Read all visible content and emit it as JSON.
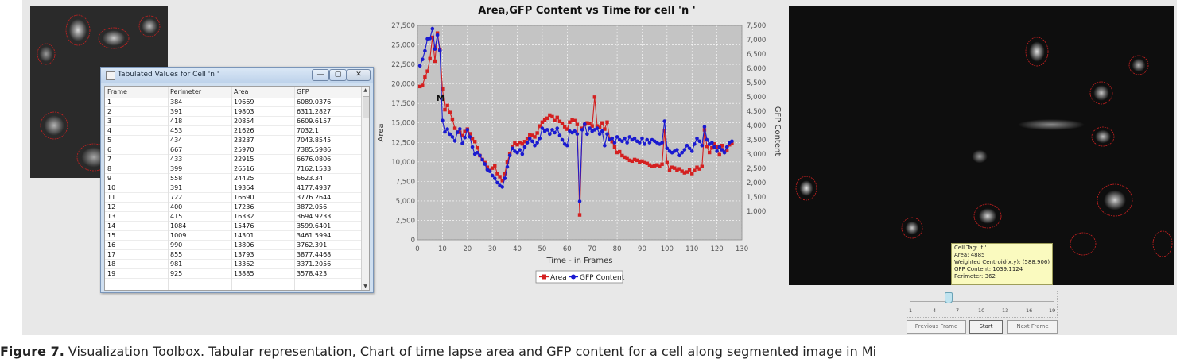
{
  "table_window": {
    "title": "Tabulated Values for Cell 'n '",
    "controls": {
      "minimize": "—",
      "maximize": "▢",
      "close": "✕"
    },
    "columns": [
      "Frame",
      "Perimeter",
      "Area",
      "GFP"
    ],
    "rows": [
      [
        "1",
        "384",
        "19669",
        "6089.0376"
      ],
      [
        "2",
        "391",
        "19803",
        "6311.2827"
      ],
      [
        "3",
        "418",
        "20854",
        "6609.6157"
      ],
      [
        "4",
        "453",
        "21626",
        "7032.1"
      ],
      [
        "5",
        "434",
        "23237",
        "7043.8545"
      ],
      [
        "6",
        "667",
        "25970",
        "7385.5986"
      ],
      [
        "7",
        "433",
        "22915",
        "6676.0806"
      ],
      [
        "8",
        "399",
        "26516",
        "7162.1533"
      ],
      [
        "9",
        "558",
        "24425",
        "6623.34"
      ],
      [
        "10",
        "391",
        "19364",
        "4177.4937"
      ],
      [
        "11",
        "722",
        "16690",
        "3776.2644"
      ],
      [
        "12",
        "400",
        "17236",
        "3872.056"
      ],
      [
        "13",
        "415",
        "16332",
        "3694.9233"
      ],
      [
        "14",
        "1084",
        "15476",
        "3599.6401"
      ],
      [
        "15",
        "1009",
        "14301",
        "3461.5994"
      ],
      [
        "16",
        "990",
        "13806",
        "3762.391"
      ],
      [
        "17",
        "855",
        "13793",
        "3877.4468"
      ],
      [
        "18",
        "981",
        "13362",
        "3371.2056"
      ],
      [
        "19",
        "925",
        "13885",
        "3578.423"
      ]
    ]
  },
  "chart_data": {
    "type": "line",
    "title": "Area,GFP Content vs Time for cell 'n '",
    "xlabel": "Time - in Frames",
    "ylabel": "Area",
    "y2label": "GFP Content",
    "xlim": [
      0,
      130
    ],
    "ylim": [
      0,
      27500
    ],
    "y2lim": [
      0,
      7500
    ],
    "x_ticks": [
      "0",
      "10",
      "20",
      "30",
      "40",
      "50",
      "60",
      "70",
      "80",
      "90",
      "100",
      "110",
      "120",
      "130"
    ],
    "y_ticks": [
      "0",
      "2,500",
      "5,000",
      "7,500",
      "10,000",
      "12,500",
      "15,000",
      "17,500",
      "20,000",
      "22,500",
      "25,000",
      "27,500"
    ],
    "y2_ticks": [
      "1,000",
      "1,500",
      "2,000",
      "2,500",
      "3,000",
      "3,500",
      "4,000",
      "4,500",
      "5,000",
      "5,500",
      "6,000",
      "6,500",
      "7,000",
      "7,500"
    ],
    "annotation": "M",
    "legend": [
      "Area",
      "GFP Content"
    ],
    "legend_position": "bottom",
    "grid": true,
    "series": [
      {
        "name": "Area",
        "axis": "left",
        "color": "#d42020",
        "x": [
          1,
          2,
          3,
          4,
          5,
          6,
          7,
          8,
          9,
          10,
          11,
          12,
          13,
          14,
          15,
          16,
          17,
          18,
          19,
          20,
          21,
          22,
          23,
          24,
          25,
          26,
          27,
          28,
          29,
          30,
          31,
          32,
          33,
          34,
          35,
          36,
          37,
          38,
          39,
          40,
          41,
          42,
          43,
          44,
          45,
          46,
          47,
          48,
          49,
          50,
          51,
          52,
          53,
          54,
          55,
          56,
          57,
          58,
          59,
          60,
          61,
          62,
          63,
          64,
          65,
          66,
          67,
          68,
          69,
          70,
          71,
          72,
          73,
          74,
          75,
          76,
          77,
          78,
          79,
          80,
          81,
          82,
          83,
          84,
          85,
          86,
          87,
          88,
          89,
          90,
          91,
          92,
          93,
          94,
          95,
          96,
          97,
          98,
          99,
          100,
          101,
          102,
          103,
          104,
          105,
          106,
          107,
          108,
          109,
          110,
          111,
          112,
          113,
          114,
          115,
          116,
          117,
          118,
          119,
          120,
          121,
          122,
          123,
          124,
          125,
          126
        ],
        "y": [
          19669,
          19803,
          20854,
          21626,
          23237,
          25970,
          22915,
          26516,
          24425,
          19364,
          16690,
          17236,
          16332,
          15476,
          14301,
          13806,
          13793,
          13362,
          13885,
          14200,
          13600,
          13000,
          12600,
          11800,
          10800,
          10300,
          9900,
          9300,
          8900,
          9200,
          9500,
          8500,
          8100,
          7600,
          8500,
          10000,
          11000,
          12000,
          12400,
          12200,
          12500,
          12300,
          12600,
          13000,
          13500,
          13400,
          13200,
          13700,
          14600,
          15100,
          15400,
          15600,
          16000,
          15800,
          15300,
          15700,
          15200,
          14900,
          14500,
          14200,
          15100,
          15400,
          15300,
          14800,
          3200,
          14300,
          14800,
          15000,
          14900,
          14600,
          18300,
          14600,
          14400,
          15000,
          14200,
          15100,
          12900,
          12600,
          11900,
          11200,
          11300,
          10800,
          10600,
          10400,
          10200,
          10100,
          10300,
          10200,
          10000,
          10100,
          9900,
          9800,
          9600,
          9400,
          9500,
          9600,
          9400,
          9700,
          14000,
          9900,
          8900,
          9300,
          9200,
          8900,
          9100,
          8800,
          8600,
          8700,
          9000,
          8500,
          8900,
          9300,
          9100,
          9400,
          14100,
          12000,
          11200,
          11800,
          12300,
          11900,
          10900,
          12100,
          11300,
          11500,
          12200,
          12400
        ]
      },
      {
        "name": "GFP Content",
        "axis": "right",
        "color": "#1a1ad0",
        "x": [
          1,
          2,
          3,
          4,
          5,
          6,
          7,
          8,
          9,
          10,
          11,
          12,
          13,
          14,
          15,
          16,
          17,
          18,
          19,
          20,
          21,
          22,
          23,
          24,
          25,
          26,
          27,
          28,
          29,
          30,
          31,
          32,
          33,
          34,
          35,
          36,
          37,
          38,
          39,
          40,
          41,
          42,
          43,
          44,
          45,
          46,
          47,
          48,
          49,
          50,
          51,
          52,
          53,
          54,
          55,
          56,
          57,
          58,
          59,
          60,
          61,
          62,
          63,
          64,
          65,
          66,
          67,
          68,
          69,
          70,
          71,
          72,
          73,
          74,
          75,
          76,
          77,
          78,
          79,
          80,
          81,
          82,
          83,
          84,
          85,
          86,
          87,
          88,
          89,
          90,
          91,
          92,
          93,
          94,
          95,
          96,
          97,
          98,
          99,
          100,
          101,
          102,
          103,
          104,
          105,
          106,
          107,
          108,
          109,
          110,
          111,
          112,
          113,
          114,
          115,
          116,
          117,
          118,
          119,
          120,
          121,
          122,
          123,
          124,
          125,
          126
        ],
        "y": [
          6089,
          6311,
          6610,
          7032,
          7044,
          7386,
          6676,
          7162,
          6623,
          4177,
          3776,
          3872,
          3695,
          3600,
          3462,
          3762,
          3877,
          3371,
          3578,
          3850,
          3600,
          3250,
          3000,
          3050,
          2950,
          2800,
          2650,
          2450,
          2400,
          2250,
          2150,
          2000,
          1900,
          1850,
          2150,
          2550,
          2950,
          3200,
          3100,
          3050,
          3150,
          3000,
          3250,
          3400,
          3550,
          3450,
          3300,
          3400,
          3550,
          3900,
          3800,
          3850,
          3700,
          3850,
          3750,
          3900,
          3650,
          3500,
          3350,
          3300,
          3800,
          3750,
          3800,
          3700,
          1350,
          3850,
          4050,
          3700,
          3900,
          3800,
          3850,
          3900,
          3700,
          3800,
          3300,
          3700,
          3500,
          3550,
          3400,
          3600,
          3500,
          3450,
          3550,
          3400,
          3600,
          3500,
          3550,
          3450,
          3400,
          3550,
          3350,
          3500,
          3400,
          3500,
          3450,
          3400,
          3350,
          3400,
          4150,
          3200,
          3100,
          3050,
          3100,
          3150,
          2950,
          3050,
          3150,
          3300,
          3200,
          3100,
          3350,
          3550,
          3450,
          3300,
          3950,
          3500,
          3350,
          3400,
          3250,
          3100,
          3250,
          3150,
          3050,
          3250,
          3400,
          3450
        ]
      }
    ]
  },
  "tooltip": {
    "cell_tag": "Cell Tag: 'f '",
    "area": "Area: 4885",
    "centroid": "Weighted Centroid(x,y): (588,906)",
    "gfp": "GFP Content: 1039.1124",
    "perimeter": "Perimeter: 362"
  },
  "slider": {
    "ticks": [
      "1",
      "4",
      "7",
      "10",
      "13",
      "16",
      "19"
    ],
    "value_fraction": 0.25
  },
  "buttons": {
    "previous": "Previous Frame",
    "start": "Start",
    "next": "Next Frame"
  },
  "caption": {
    "label": "Figure 7.",
    "text": " Visualization Toolbox. Tabular representation, Chart of time lapse area and GFP content for a cell along segmented image in Mi"
  },
  "colors": {
    "area": "#d42020",
    "gfp": "#1a1ad0",
    "plot_bg": "#c4c4c4",
    "tooltip_bg": "#fafabf"
  }
}
